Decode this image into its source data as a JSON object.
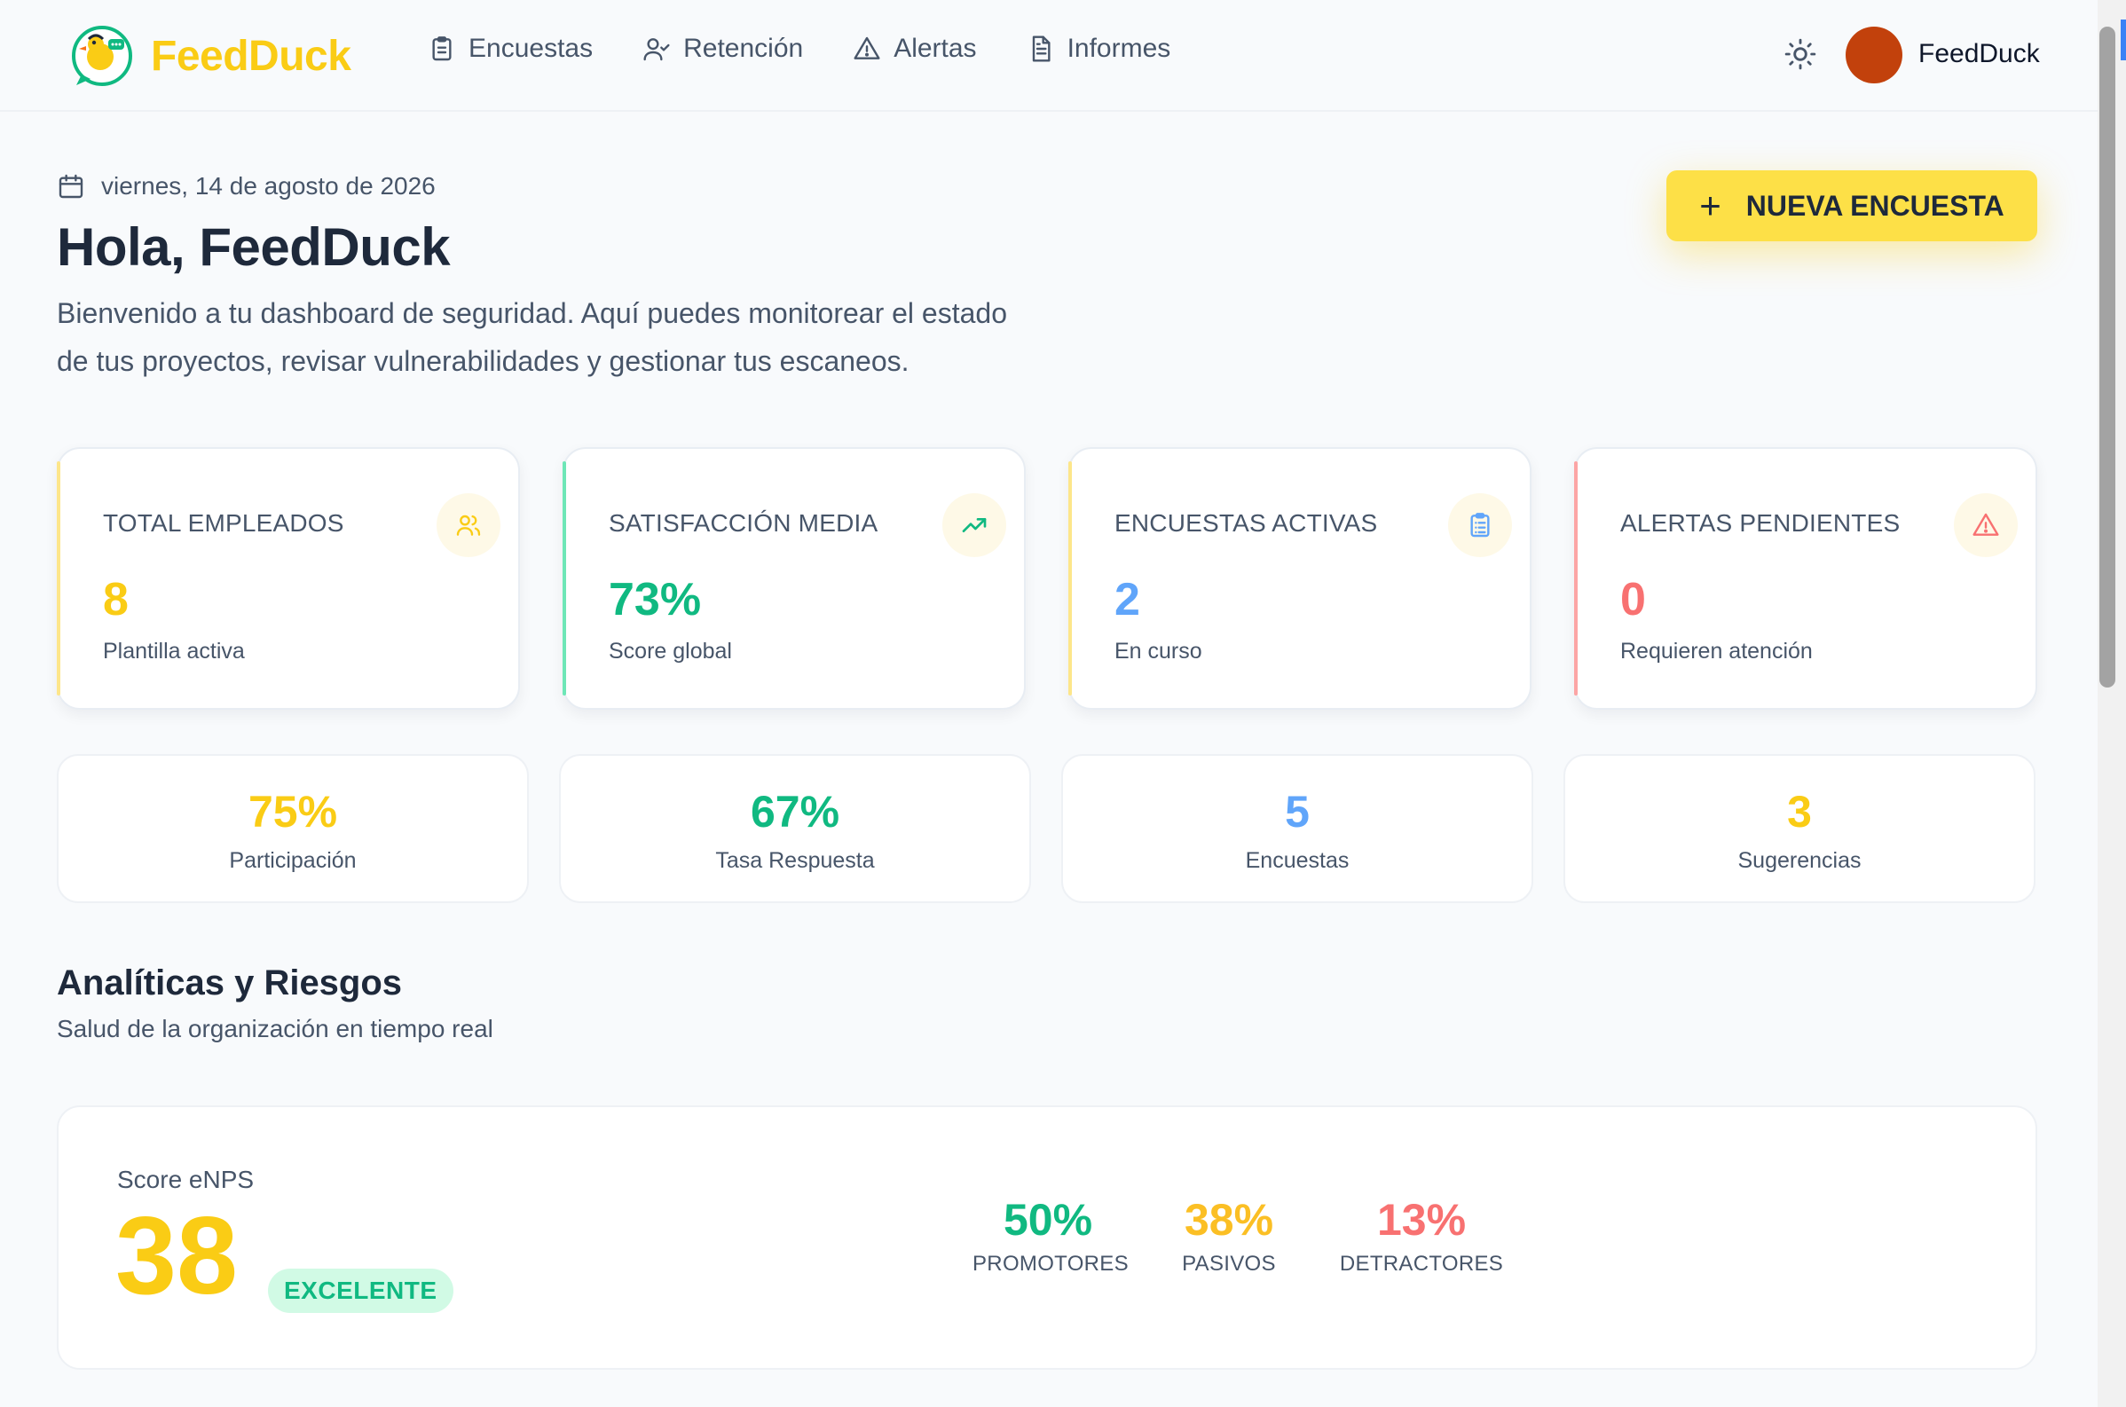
{
  "app": {
    "name": "FeedDuck",
    "user_name": "FeedDuck"
  },
  "nav": [
    {
      "label": "Encuestas",
      "icon": "clipboard-icon"
    },
    {
      "label": "Retención",
      "icon": "user-check-icon"
    },
    {
      "label": "Alertas",
      "icon": "alert-triangle-icon"
    },
    {
      "label": "Informes",
      "icon": "file-text-icon"
    }
  ],
  "header": {
    "date": "viernes, 14 de agosto de 2026",
    "greeting": "Hola, FeedDuck",
    "welcome_line1": "Bienvenido a tu dashboard de seguridad. Aquí puedes monitorear el estado",
    "welcome_line2": "de tus proyectos, revisar vulnerabilidades y gestionar tus escaneos.",
    "new_button": "NUEVA ENCUESTA",
    "new_button_icon": "+"
  },
  "stat_cards": [
    {
      "label": "TOTAL EMPLEADOS",
      "value": "8",
      "sub": "Plantilla activa",
      "color": "#facc15",
      "icon": "users-icon"
    },
    {
      "label": "SATISFACCIÓN MEDIA",
      "value": "73%",
      "sub": "Score global",
      "color": "#10b981",
      "icon": "trending-up-icon"
    },
    {
      "label": "ENCUESTAS ACTIVAS",
      "value": "2",
      "sub": "En curso",
      "color": "#60a5fa",
      "icon": "clipboard-list-icon"
    },
    {
      "label": "ALERTAS PENDIENTES",
      "value": "0",
      "sub": "Requieren atención",
      "color": "#f87171",
      "icon": "alert-triangle-icon"
    }
  ],
  "mini_stats": [
    {
      "value": "75%",
      "label": "Participación",
      "color": "#facc15"
    },
    {
      "value": "67%",
      "label": "Tasa Respuesta",
      "color": "#10b981"
    },
    {
      "value": "5",
      "label": "Encuestas",
      "color": "#60a5fa"
    },
    {
      "value": "3",
      "label": "Sugerencias",
      "color": "#facc15"
    }
  ],
  "analytics": {
    "title": "Analíticas y Riesgos",
    "subtitle": "Salud de la organización en tiempo real",
    "enps_label": "Score eNPS",
    "enps_score": "38",
    "enps_badge": "EXCELENTE",
    "distribution": [
      {
        "value": "50%",
        "label": "PROMOTORES",
        "color": "#10b981"
      },
      {
        "value": "38%",
        "label": "PASIVOS",
        "color": "#fbbf24"
      },
      {
        "value": "13%",
        "label": "DETRACTORES",
        "color": "#f87171"
      }
    ]
  },
  "colors": {
    "brand": "#facc15",
    "avatar": "#c2410c",
    "success": "#10b981",
    "info": "#60a5fa",
    "danger": "#f87171"
  }
}
